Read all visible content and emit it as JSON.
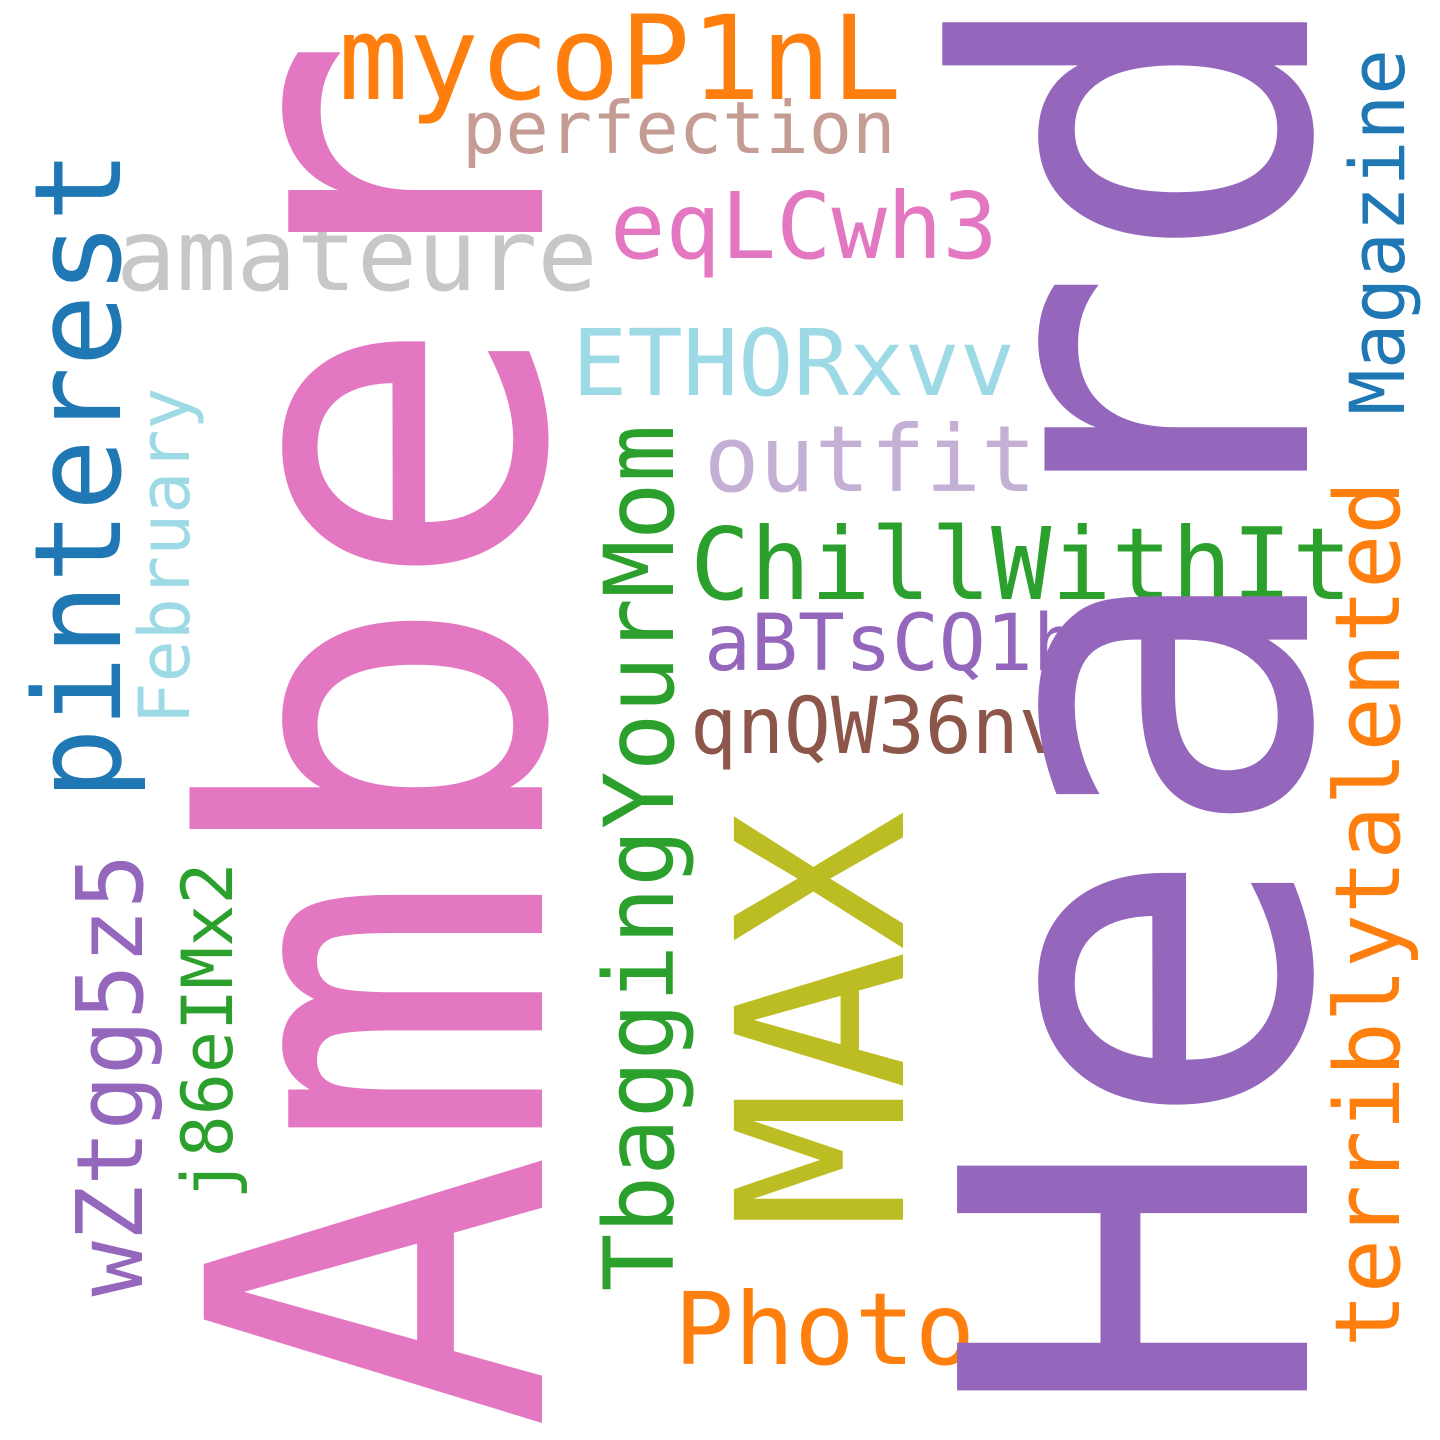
{
  "words": {
    "heard": {
      "text": "Heard",
      "color": "#9467bd"
    },
    "amber": {
      "text": "Amber",
      "color": "#e377c2"
    },
    "max": {
      "text": "MAX",
      "color": "#bcbd22"
    },
    "mycopinl": {
      "text": "mycoP1nL",
      "color": "#ff7f0e"
    },
    "perfection": {
      "text": "perfection",
      "color": "#c49c94"
    },
    "pinterest": {
      "text": "pinterest",
      "color": "#1f77b4"
    },
    "amateure": {
      "text": "amateure",
      "color": "#c7c7c7"
    },
    "eqlcwh3": {
      "text": "eqLCwh3",
      "color": "#e377c2"
    },
    "magazine": {
      "text": "Magazine",
      "color": "#1f77b4"
    },
    "ethorxvv": {
      "text": "ETHORxvv",
      "color": "#9edae5"
    },
    "outfit": {
      "text": "outfit",
      "color": "#c5b0d5"
    },
    "february": {
      "text": "February",
      "color": "#9edae5"
    },
    "tbaggingyourmom": {
      "text": "TbaggingYourMom",
      "color": "#2ca02c"
    },
    "chillwithit": {
      "text": "ChillWithIt",
      "color": "#2ca02c"
    },
    "terriblytalented": {
      "text": "terriblytalented",
      "color": "#ff7f0e"
    },
    "abtscq1h": {
      "text": "aBTsCQ1h",
      "color": "#9467bd"
    },
    "qnqw36nv": {
      "text": "qnQW36nv",
      "color": "#8c564b"
    },
    "wztgg5z5": {
      "text": "wZtgg5z5",
      "color": "#9467bd"
    },
    "j86eimx2": {
      "text": "j86eIMx2",
      "color": "#2ca02c"
    },
    "photo": {
      "text": "Photo",
      "color": "#ff7f0e"
    }
  }
}
